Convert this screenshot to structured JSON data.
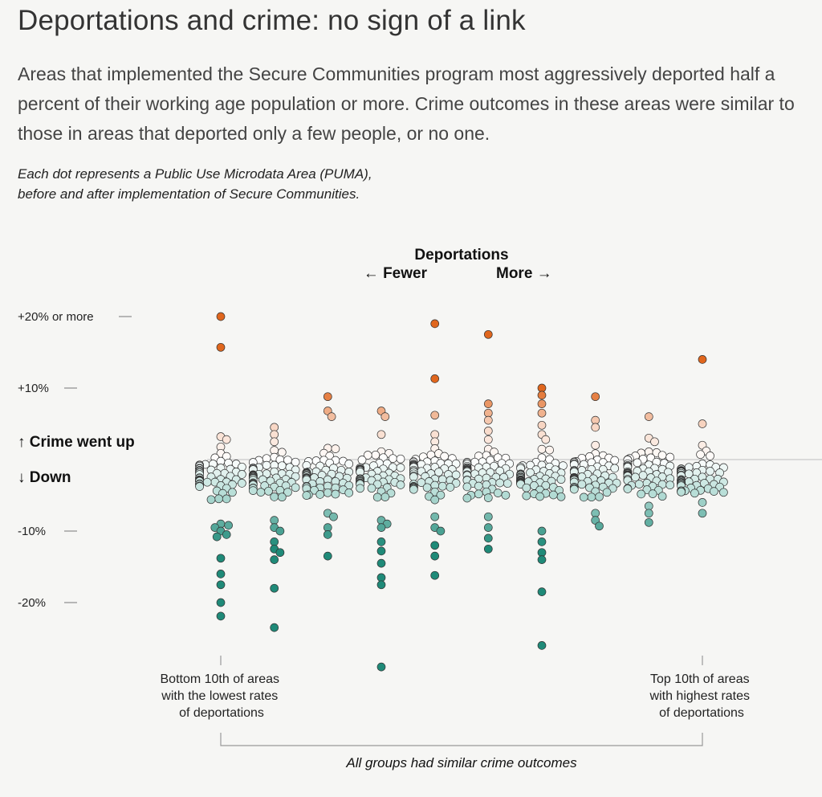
{
  "title": "Deportations and crime: no sign of a link",
  "subtitle": "Areas that implemented the Secure Communities program most aggressively deported half a percent of their working age population or more. Crime outcomes in these areas were similar to those in areas that deported only a few people, or no one.",
  "note": "Each dot represents a Public Use Microdata Area (PUMA), before and after implementation of Secure Communities.",
  "colors": {
    "background": "#f6f6f4",
    "up_strong": "#e0661d",
    "up_light": "#f7d3bf",
    "neutral": "#ffffff",
    "down_light": "#b6ddd6",
    "down_strong": "#1f8a78",
    "zero_line": "#c9c9c9"
  },
  "chart_data": {
    "type": "scatter",
    "x_title": "Deportations",
    "x_direction_left": "← Fewer",
    "x_direction_right": "More →",
    "y_direction_up": "↑ Crime went up",
    "y_direction_down": "↓ Down",
    "y_ticks": [
      {
        "value": 20,
        "label": "+20% or more"
      },
      {
        "value": 10,
        "label": "+10%"
      },
      {
        "value": -10,
        "label": "-10%"
      },
      {
        "value": -20,
        "label": "-20%"
      }
    ],
    "ylim": [
      -30,
      20
    ],
    "groups": [
      "1",
      "2",
      "3",
      "4",
      "5",
      "6",
      "7",
      "8",
      "9",
      "10"
    ],
    "left_end_label": [
      "Bottom 10th of areas",
      "with the lowest rates",
      "of deportations"
    ],
    "right_end_label": [
      "Top 10th of areas",
      "with highest rates",
      "of deportations"
    ],
    "footer": "All groups had similar crime outcomes",
    "outliers": [
      {
        "group": 1,
        "values": [
          20,
          15.7,
          3.2,
          2.8,
          -5.5,
          -9.0,
          -9.2,
          -9.5,
          -10.0,
          -10.5,
          -10.8,
          -13.8,
          -16.0,
          -17.5,
          -20.0,
          -21.9
        ]
      },
      {
        "group": 2,
        "values": [
          4.5,
          3.5,
          2.5,
          -8.5,
          -9.5,
          -10.0,
          -11.5,
          -12.5,
          -13.0,
          -14.0,
          -18.0,
          -23.5
        ]
      },
      {
        "group": 3,
        "values": [
          8.8,
          6.8,
          6.0,
          1.5,
          -7.5,
          -8.0,
          -9.5,
          -10.5,
          -13.5
        ]
      },
      {
        "group": 4,
        "values": [
          6.8,
          6.0,
          3.5,
          -8.5,
          -9.0,
          -9.5,
          -11.5,
          -12.8,
          -14.5,
          -16.5,
          -17.5,
          -29.0
        ]
      },
      {
        "group": 5,
        "values": [
          19.0,
          11.3,
          6.2,
          3.5,
          2.5,
          -8.0,
          -9.5,
          -10.0,
          -12.0,
          -13.5,
          -16.2
        ]
      },
      {
        "group": 6,
        "values": [
          17.5,
          7.8,
          6.5,
          5.5,
          4.0,
          2.8,
          -8.0,
          -9.5,
          -11.0,
          -12.5
        ]
      },
      {
        "group": 7,
        "values": [
          10.0,
          9.0,
          7.8,
          6.5,
          4.8,
          3.5,
          2.8,
          -10.0,
          -11.5,
          -13.0,
          -14.0,
          -18.5,
          -26.0
        ]
      },
      {
        "group": 8,
        "values": [
          8.8,
          5.5,
          4.5,
          2.0,
          -7.5,
          -8.5,
          -9.3
        ]
      },
      {
        "group": 9,
        "values": [
          6.0,
          3.0,
          2.5,
          -6.5,
          -7.5,
          -8.8
        ]
      },
      {
        "group": 10,
        "values": [
          14.0,
          5.0,
          2.0,
          1.2,
          -6.0,
          -7.5
        ]
      }
    ],
    "cluster": {
      "range": [
        -6.5,
        2.5
      ],
      "points_per_group": 60
    }
  }
}
